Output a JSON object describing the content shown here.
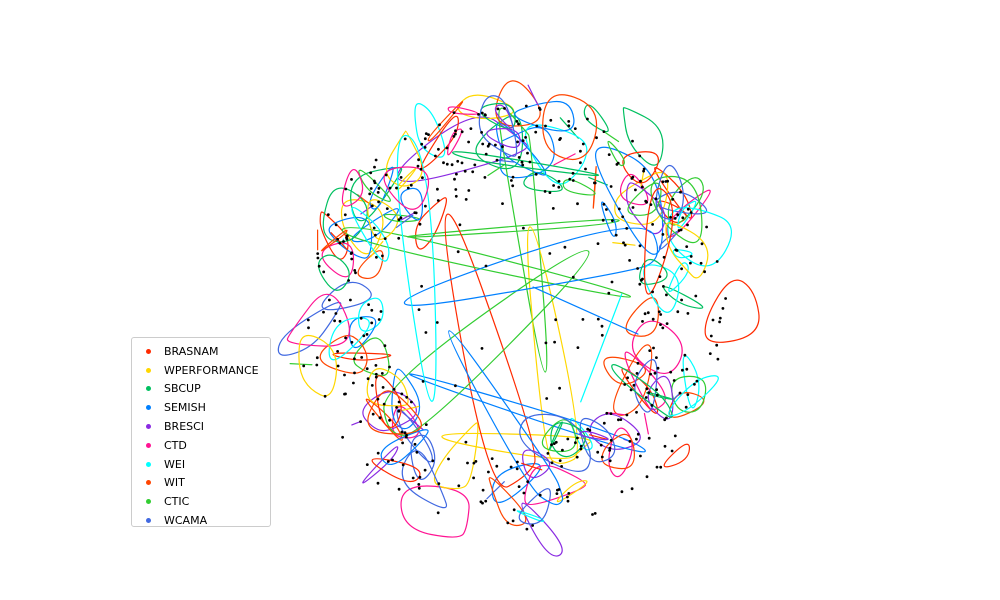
{
  "legend": {
    "entries": [
      {
        "label": "BRASNAM",
        "color": "#ff2a00"
      },
      {
        "label": "WPERFORMANCE",
        "color": "#ffd700"
      },
      {
        "label": "SBCUP",
        "color": "#00c060"
      },
      {
        "label": "SEMISH",
        "color": "#0080ff"
      },
      {
        "label": "BRESCI",
        "color": "#8a2be2"
      },
      {
        "label": "CTD",
        "color": "#ff1493"
      },
      {
        "label": "WEI",
        "color": "#00ffff"
      },
      {
        "label": "WIT",
        "color": "#ff4500"
      },
      {
        "label": "CTIC",
        "color": "#32cd32"
      },
      {
        "label": "WCAMA",
        "color": "#4169e1"
      }
    ]
  }
}
